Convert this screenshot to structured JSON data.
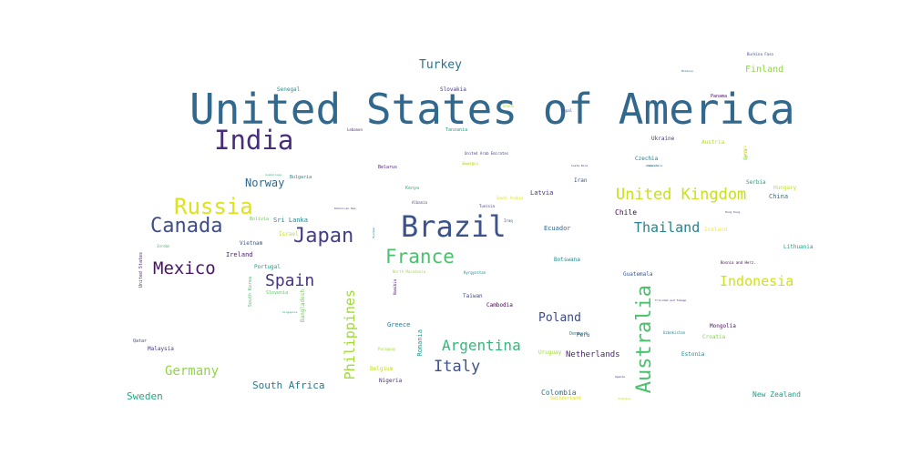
{
  "words": [
    {
      "text": "United States of America",
      "color": "#31688e"
    },
    {
      "text": "India",
      "color": "#472d7b"
    },
    {
      "text": "Brazil",
      "color": "#3b528b"
    },
    {
      "text": "Russia",
      "color": "#dde318"
    },
    {
      "text": "Canada",
      "color": "#3e4c8a"
    },
    {
      "text": "Japan",
      "color": "#433e85"
    },
    {
      "text": "France",
      "color": "#4ac16d"
    },
    {
      "text": "Mexico",
      "color": "#481467"
    },
    {
      "text": "Spain",
      "color": "#46337f"
    },
    {
      "text": "Australia",
      "color": "#4ac16d"
    },
    {
      "text": "Philippines",
      "color": "#a0da39"
    },
    {
      "text": "United Kingdom",
      "color": "#c8e020"
    },
    {
      "text": "Thailand",
      "color": "#26828e"
    },
    {
      "text": "Indonesia",
      "color": "#d0e11c"
    },
    {
      "text": "Argentina",
      "color": "#35b779"
    },
    {
      "text": "Italy",
      "color": "#3b528b"
    },
    {
      "text": "Germany",
      "color": "#90d743"
    },
    {
      "text": "Turkey",
      "color": "#2c728e"
    },
    {
      "text": "Finland",
      "color": "#8fd744"
    },
    {
      "text": "Norway",
      "color": "#31688e"
    },
    {
      "text": "Poland",
      "color": "#3e4989"
    },
    {
      "text": "Netherlands",
      "color": "#482173"
    },
    {
      "text": "South Africa",
      "color": "#2a788e"
    },
    {
      "text": "Sweden",
      "color": "#22a884"
    },
    {
      "text": "New Zealand",
      "color": "#1f9e89"
    },
    {
      "text": "Colombia",
      "color": "#2a788e"
    },
    {
      "text": "Chile",
      "color": "#440154"
    },
    {
      "text": "Senegal",
      "color": "#21918c"
    },
    {
      "text": "Slovakia",
      "color": "#443983"
    },
    {
      "text": "Panama",
      "color": "#471365"
    },
    {
      "text": "Ukraine",
      "color": "#453781"
    },
    {
      "text": "Austria",
      "color": "#b5de2b"
    },
    {
      "text": "Czechia",
      "color": "#2a788e"
    },
    {
      "text": "Bulgaria",
      "color": "#25858e"
    },
    {
      "text": "Kenya",
      "color": "#35b779"
    },
    {
      "text": "Latvia",
      "color": "#46307e"
    },
    {
      "text": "Iran",
      "color": "#3b528b"
    },
    {
      "text": "Serbia",
      "color": "#1fa088"
    },
    {
      "text": "Hungary",
      "color": "#c2df23"
    },
    {
      "text": "China",
      "color": "#2c728e"
    },
    {
      "text": "Sri Lanka",
      "color": "#26828e"
    },
    {
      "text": "Israel",
      "color": "#bddf26"
    },
    {
      "text": "Bolivia",
      "color": "#6ccd5a"
    },
    {
      "text": "Vietnam",
      "color": "#3b528b"
    },
    {
      "text": "Ireland",
      "color": "#481a6c"
    },
    {
      "text": "Portugal",
      "color": "#1fa088"
    },
    {
      "text": "South Korea",
      "color": "#4ac16d"
    },
    {
      "text": "Slovenia",
      "color": "#5ec962"
    },
    {
      "text": "Bangladesh",
      "color": "#6ece58"
    },
    {
      "text": "Ecuador",
      "color": "#31688e"
    },
    {
      "text": "Botswana",
      "color": "#23898e"
    },
    {
      "text": "Guatemala",
      "color": "#39568c"
    },
    {
      "text": "Taiwan",
      "color": "#3e4989"
    },
    {
      "text": "Cambodia",
      "color": "#440154"
    },
    {
      "text": "Greece",
      "color": "#2a788e"
    },
    {
      "text": "Romania",
      "color": "#1f9e89"
    },
    {
      "text": "Belgium",
      "color": "#bddf26"
    },
    {
      "text": "Nigeria",
      "color": "#472d7b"
    },
    {
      "text": "Denmark",
      "color": "#21918c"
    },
    {
      "text": "Peru",
      "color": "#3b528b"
    },
    {
      "text": "Uruguay",
      "color": "#a2da37"
    },
    {
      "text": "Switzerland",
      "color": "#dde318"
    },
    {
      "text": "Mongolia",
      "color": "#481467"
    },
    {
      "text": "Croatia",
      "color": "#84d44b"
    },
    {
      "text": "Estonia",
      "color": "#26828e"
    },
    {
      "text": "Lithuania",
      "color": "#1fa088"
    },
    {
      "text": "Malaysia",
      "color": "#443983"
    },
    {
      "text": "Qatar",
      "color": "#404688"
    },
    {
      "text": "Jordan",
      "color": "#3dbc74"
    },
    {
      "text": "United States",
      "color": "#482878"
    },
    {
      "text": "Kyrgyzstan",
      "color": "#26828e"
    },
    {
      "text": "North Macedonia",
      "color": "#a8db34"
    },
    {
      "text": "Albania",
      "color": "#3e4a89"
    },
    {
      "text": "Tunisia",
      "color": "#46327e"
    },
    {
      "text": "Saudi Arabia",
      "color": "#dde318"
    },
    {
      "text": "Iraq",
      "color": "#3b528b"
    },
    {
      "text": "United Arab Emirates",
      "color": "#3e4989"
    },
    {
      "text": "Georgia",
      "color": "#c0df25"
    },
    {
      "text": "Belarus",
      "color": "#481f70"
    },
    {
      "text": "Tanzania",
      "color": "#1fa088"
    },
    {
      "text": "Nepal",
      "color": "#3b528b"
    },
    {
      "text": "Ghana",
      "color": "#b8de29"
    },
    {
      "text": "Lebanon",
      "color": "#482878"
    },
    {
      "text": "Bosnia and Herz.",
      "color": "#440154"
    },
    {
      "text": "Costa Rica",
      "color": "#481b6d"
    },
    {
      "text": "Jamaica",
      "color": "#25848e"
    },
    {
      "text": "Uzbekistan",
      "color": "#26828e"
    },
    {
      "text": "Trinidad and Tobago",
      "color": "#482878"
    },
    {
      "text": "Hong Kong",
      "color": "#3e4989"
    },
    {
      "text": "Dominican Rep.",
      "color": "#414487"
    },
    {
      "text": "Guadeloupe",
      "color": "#35b779"
    },
    {
      "text": "Myanmar",
      "color": "#287d8e"
    },
    {
      "text": "Uganda",
      "color": "#46307e"
    },
    {
      "text": "Zimbabwe",
      "color": "#c2df23"
    },
    {
      "text": "Singapore",
      "color": "#1f9e89"
    },
    {
      "text": "Rwanda",
      "color": "#e5e419"
    },
    {
      "text": "Namibia",
      "color": "#481668"
    },
    {
      "text": "Moldova",
      "color": "#33638d"
    },
    {
      "text": "Paraguay",
      "color": "#a0da39"
    },
    {
      "text": "Eswatini",
      "color": "#bddf26"
    },
    {
      "text": "Iceland",
      "color": "#fde725"
    },
    {
      "text": "Antarctica",
      "color": "#3b528b"
    },
    {
      "text": "Burkina Faso",
      "color": "#3e4989"
    },
    {
      "text": "Syria",
      "color": "#5ec962"
    }
  ]
}
